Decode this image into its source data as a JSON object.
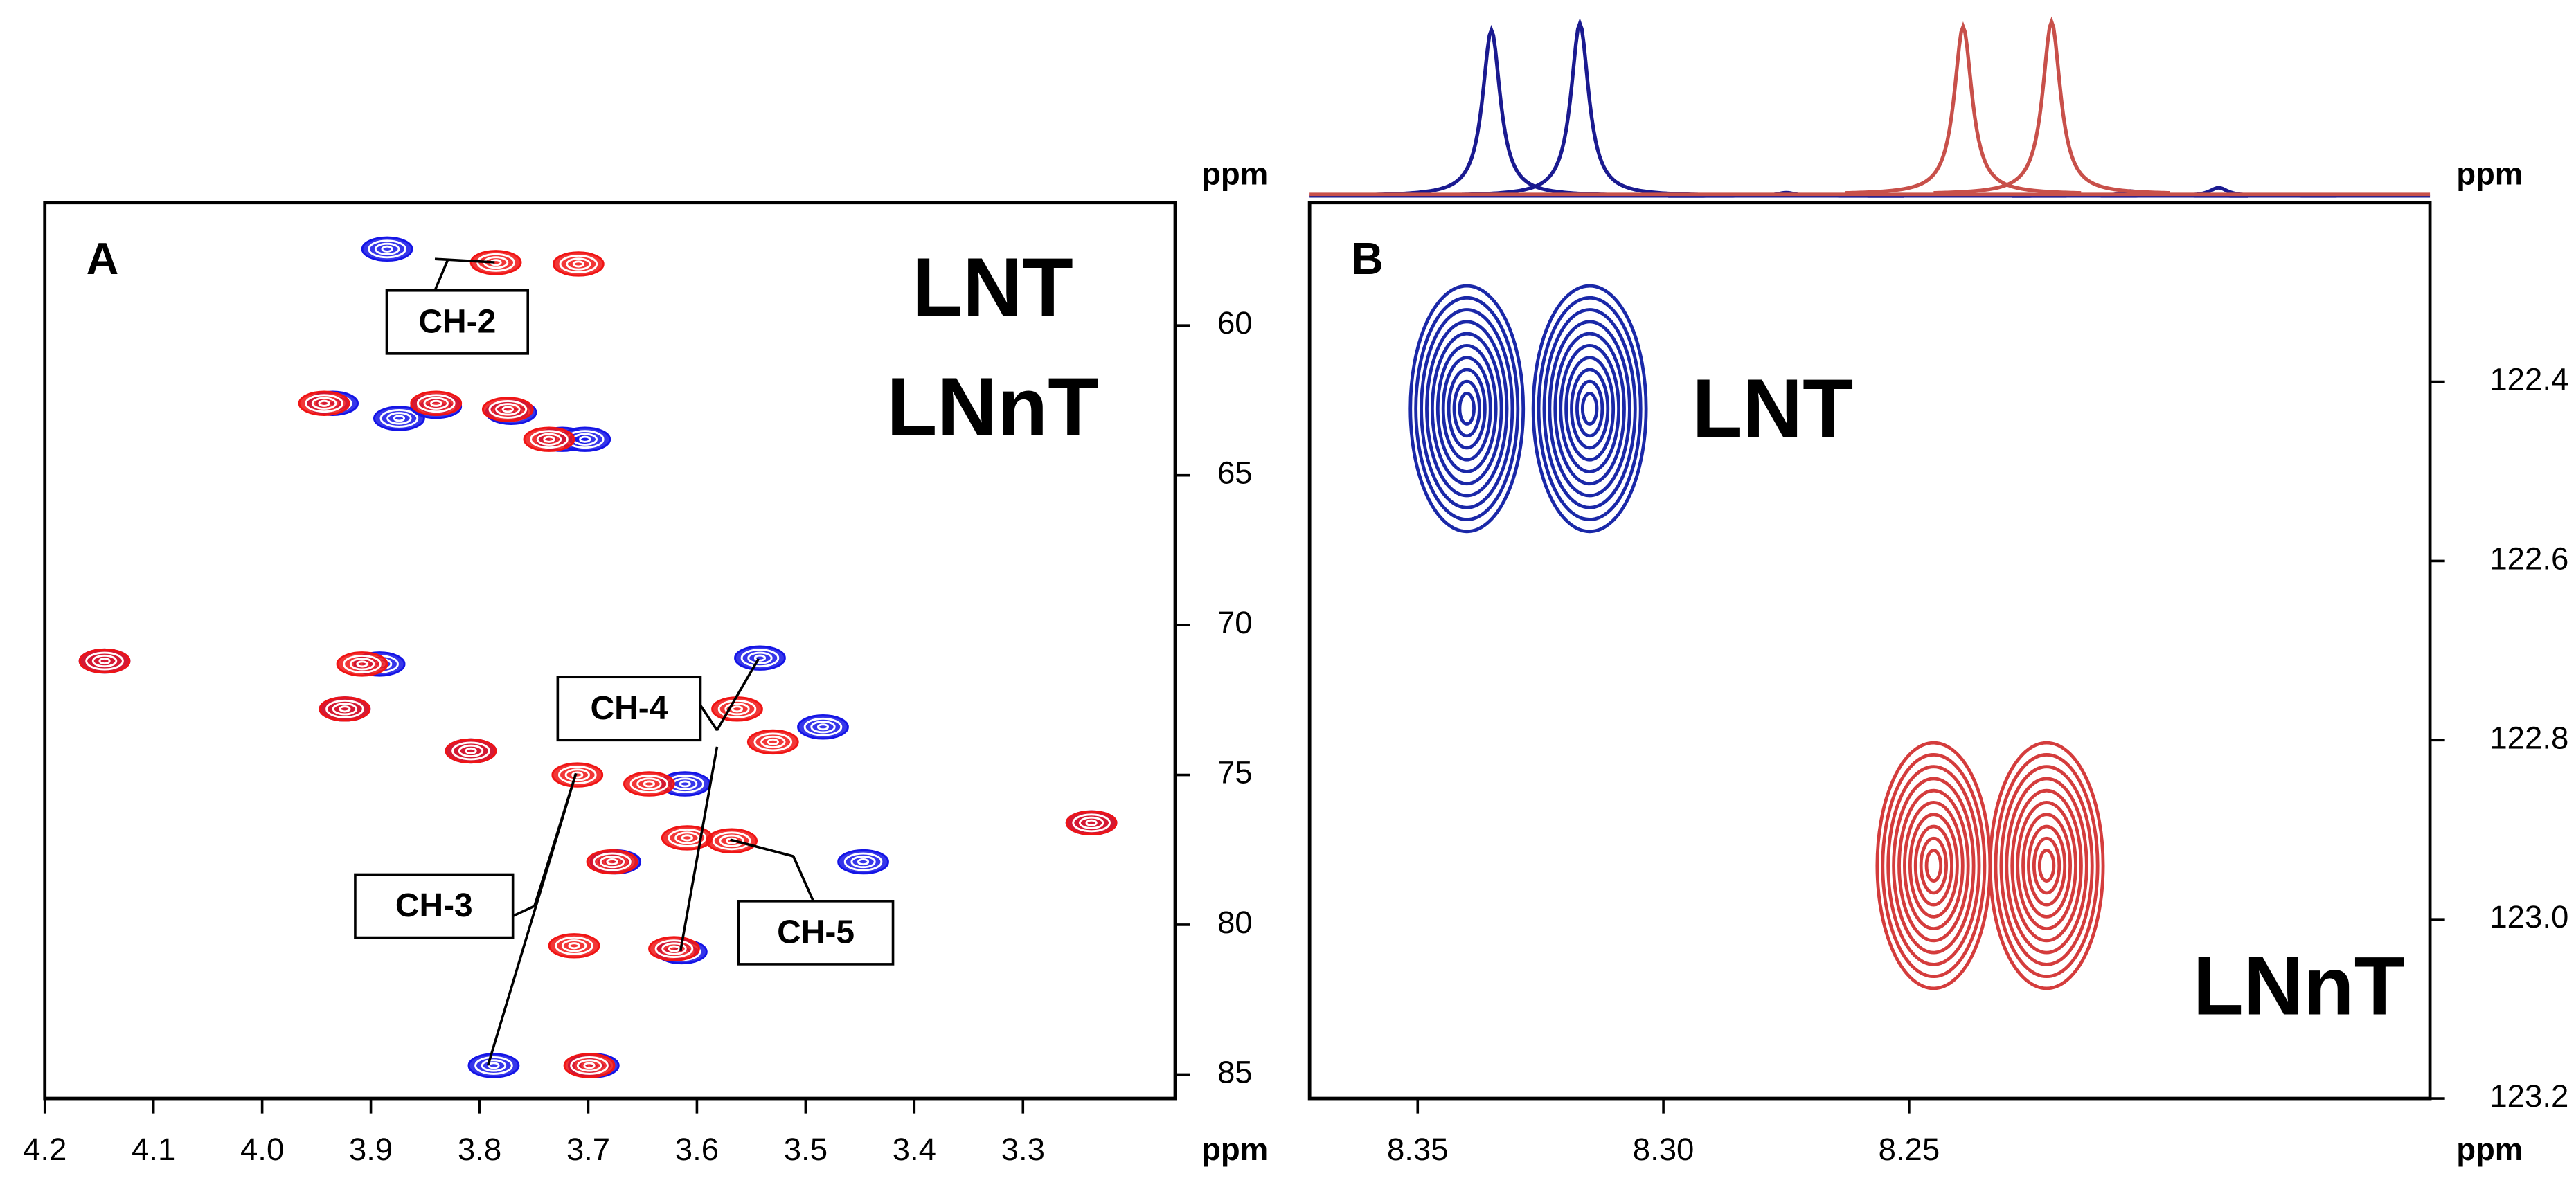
{
  "chart_data": [
    {
      "type": "contour",
      "title": "A",
      "xlabel": "ppm",
      "ylabel": "ppm",
      "xlim": [
        4.2,
        3.16
      ],
      "ylim": [
        55.9,
        85.8
      ],
      "xticks": [
        4.2,
        4.1,
        {
          "value": 4,
          "label": "4.0"
        },
        3.9,
        3.8,
        3.7,
        3.6,
        3.5,
        3.4,
        3.3
      ],
      "yticks": [
        60,
        65,
        70,
        75,
        80,
        85
      ],
      "legend": "upper right",
      "series": [
        {
          "name": "LNT",
          "color": "#1414e6",
          "x": [
            3.885,
            3.874,
            3.935,
            3.84,
            3.771,
            3.724,
            3.703,
            4.145,
            3.892,
            3.924,
            3.808,
            3.611,
            3.542,
            3.484,
            3.447,
            3.675,
            3.614,
            3.787,
            3.695,
            3.237
          ],
          "y": [
            57.45,
            63.1,
            62.6,
            62.7,
            62.9,
            63.8,
            63.8,
            71.2,
            71.3,
            72.8,
            74.2,
            75.3,
            71.1,
            73.4,
            77.9,
            77.9,
            80.9,
            84.7,
            84.7,
            76.6
          ]
        },
        {
          "name": "LNnT",
          "color": "#f01414",
          "x": [
            3.785,
            3.709,
            3.943,
            3.84,
            3.774,
            3.736,
            4.145,
            3.908,
            3.924,
            3.808,
            3.71,
            3.644,
            3.563,
            3.53,
            3.609,
            3.568,
            3.678,
            3.713,
            3.621,
            3.699,
            3.237
          ],
          "y": [
            57.9,
            57.95,
            62.6,
            62.6,
            62.8,
            63.8,
            71.2,
            71.3,
            72.8,
            74.2,
            75.0,
            75.3,
            72.8,
            73.9,
            77.1,
            77.2,
            77.9,
            80.7,
            80.8,
            84.7,
            76.6
          ]
        }
      ],
      "annotations": [
        "CH-2",
        "CH-3",
        "CH-4",
        "CH-5"
      ]
    },
    {
      "type": "contour-large",
      "title": "B",
      "xlabel": "ppm",
      "ylabel": "ppm",
      "xlim": [
        8.372,
        8.144
      ],
      "ylim": [
        122.2,
        123.2
      ],
      "xticks": [
        8.35,
        {
          "value": 8.3,
          "label": "8.30"
        },
        8.25
      ],
      "yticks": [
        122.4,
        122.6,
        122.8,
        {
          "value": 123,
          "label": "123.0"
        },
        123.2
      ],
      "series": [
        {
          "name": "LNT",
          "color": "#1a28a8",
          "x": [
            8.34,
            8.315
          ],
          "y": [
            122.43,
            122.43
          ]
        },
        {
          "name": "LNnT",
          "color": "#d43c3c",
          "x": [
            8.245,
            8.222
          ],
          "y": [
            122.94,
            122.94
          ]
        }
      ],
      "spectrum": [
        {
          "color": "#1a1a90",
          "x": [
            8.335,
            8.317,
            8.275,
            8.205,
            8.187
          ],
          "values": [
            100,
            104,
            2,
            3,
            5
          ]
        },
        {
          "color": "#c8504a",
          "x": [
            8.239,
            8.221
          ],
          "values": [
            101,
            104
          ]
        }
      ]
    }
  ]
}
